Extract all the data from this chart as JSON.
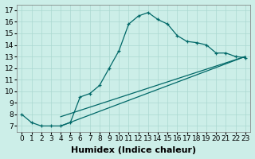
{
  "xlabel": "Humidex (Indice chaleur)",
  "bg_color": "#cceee8",
  "grid_color": "#aad8d0",
  "line_color": "#006868",
  "xlim": [
    -0.5,
    23.5
  ],
  "ylim": [
    6.5,
    17.5
  ],
  "xticks": [
    0,
    1,
    2,
    3,
    4,
    5,
    6,
    7,
    8,
    9,
    10,
    11,
    12,
    13,
    14,
    15,
    16,
    17,
    18,
    19,
    20,
    21,
    22,
    23
  ],
  "yticks": [
    7,
    8,
    9,
    10,
    11,
    12,
    13,
    14,
    15,
    16,
    17
  ],
  "curve_x": [
    0,
    1,
    2,
    3,
    4,
    5,
    6,
    7,
    8,
    9,
    10,
    11,
    12,
    13,
    14,
    15,
    16,
    17,
    18,
    19,
    20,
    21,
    22,
    23
  ],
  "curve_y": [
    8,
    7.3,
    7,
    7,
    7,
    7.3,
    9.5,
    9.8,
    10.5,
    12,
    13.5,
    15.8,
    16.5,
    16.8,
    16.2,
    15.8,
    14.8,
    14.3,
    14.2,
    14.0,
    13.3,
    13.3,
    13.0,
    12.9
  ],
  "line2_x": [
    4,
    23
  ],
  "line2_y": [
    7,
    13
  ],
  "line3_x": [
    4,
    23
  ],
  "line3_y": [
    7.8,
    13
  ],
  "marker_size": 3,
  "lw": 0.9,
  "font_size_label": 8,
  "font_size_tick": 6.5
}
